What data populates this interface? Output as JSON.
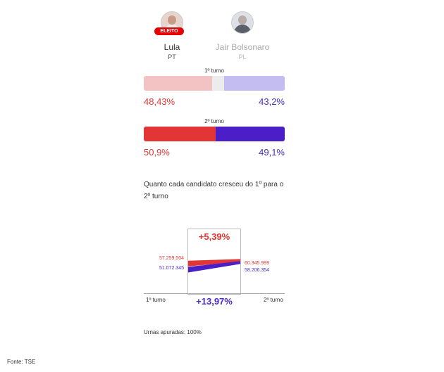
{
  "candidates": [
    {
      "name": "Lula",
      "party": "PT",
      "badge": "ELEITO",
      "color": "#e23636",
      "avatar_icon": "person-photo-icon"
    },
    {
      "name": "Jair Bolsonaro",
      "party": "PL",
      "color": "#4a2bc8",
      "avatar_icon": "person-photo-icon"
    }
  ],
  "rounds": [
    {
      "title": "1º turno",
      "lula_pct": "48,43%",
      "bolsonaro_pct": "43,2%"
    },
    {
      "title": "2º turno",
      "lula_pct": "50,9%",
      "bolsonaro_pct": "49,1%"
    }
  ],
  "growth": {
    "question": "Quanto cada candidato cresceu do 1º para o 2º turno",
    "lula_growth": "+5,39%",
    "bolsonaro_growth": "+13,97%",
    "x_start_label": "1º turno",
    "x_end_label": "2º turno",
    "lula_votes_start": "57.259.504",
    "lula_votes_end": "60.345.999",
    "bolsonaro_votes_start": "51.072.345",
    "bolsonaro_votes_end": "58.206.354"
  },
  "urnas": "Urnas apuradas: 100%",
  "source": "Fonte: TSE",
  "chart_data": [
    {
      "type": "bar",
      "title": "1º turno",
      "categories": [
        "Lula",
        "Jair Bolsonaro"
      ],
      "values": [
        48.43,
        43.2
      ],
      "colors": [
        "#f3c3c3",
        "#c4bdf1"
      ],
      "ylim": [
        0,
        100
      ]
    },
    {
      "type": "bar",
      "title": "2º turno",
      "categories": [
        "Lula",
        "Jair Bolsonaro"
      ],
      "values": [
        50.9,
        49.1
      ],
      "colors": [
        "#e23636",
        "#4a1fc8"
      ],
      "ylim": [
        0,
        100
      ]
    },
    {
      "type": "line",
      "title": "Quanto cada candidato cresceu do 1º para o 2º turno",
      "x": [
        "1º turno",
        "2º turno"
      ],
      "series": [
        {
          "name": "Lula",
          "values": [
            57259504,
            60345999
          ],
          "color": "#e23636"
        },
        {
          "name": "Jair Bolsonaro",
          "values": [
            51072345,
            58206354
          ],
          "color": "#4a1fc8"
        }
      ]
    }
  ]
}
